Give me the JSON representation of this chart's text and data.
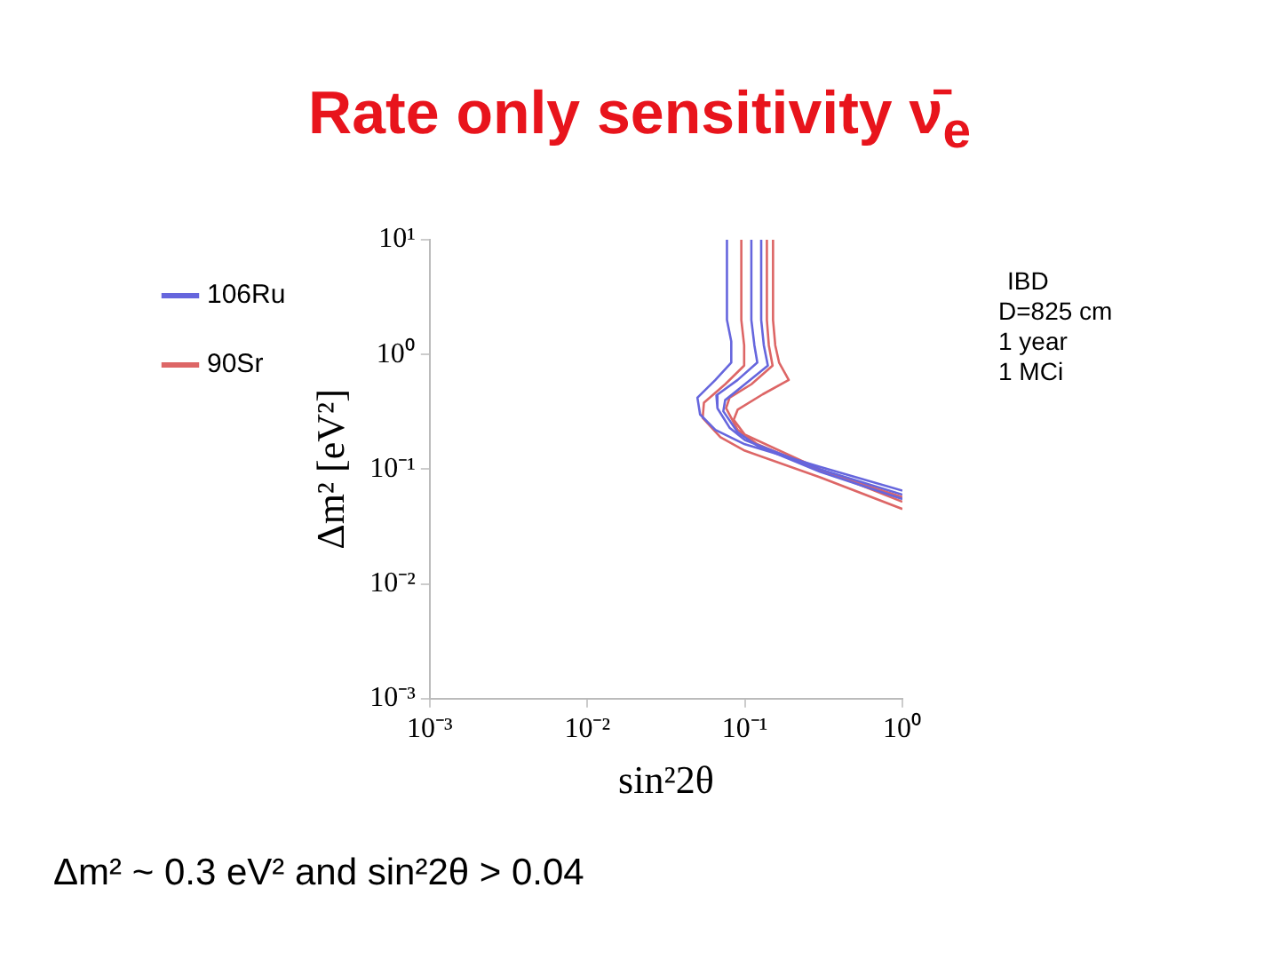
{
  "chart_data": {
    "type": "line",
    "title": "Rate only sensitivity ν̄$_{e}$",
    "xlabel": "sin²2θ",
    "ylabel": "Δm² [eV²]",
    "annotations": [
      "IBD",
      "D=825 cm",
      "1 year",
      "1 MCi",
      "Δm² ~ 0.3 eV² and sin²2θ > 0.04"
    ],
    "log": "xy",
    "grid": false,
    "legend": "left",
    "xlim": [
      0.001,
      1
    ],
    "ylim": [
      0.001,
      10
    ],
    "xticks": [
      {
        "value": 0.001,
        "label": "10⁻³"
      },
      {
        "value": 0.01,
        "label": "10⁻²"
      },
      {
        "value": 0.1,
        "label": "10⁻¹"
      },
      {
        "value": 1,
        "label": "10⁰"
      }
    ],
    "yticks": [
      {
        "value": 0.001,
        "label": "10⁻³"
      },
      {
        "value": 0.01,
        "label": "10⁻²"
      },
      {
        "value": 0.1,
        "label": "10⁻¹"
      },
      {
        "value": 1,
        "label": "10⁰"
      },
      {
        "value": 10,
        "label": "10¹"
      }
    ],
    "series": [
      {
        "name": "106Ru",
        "color": "#6666dd",
        "x": [
          0.077,
          0.077,
          0.082,
          0.082,
          0.065,
          0.05,
          0.052,
          0.065,
          0.1,
          0.3,
          1
        ],
        "values": [
          10,
          2,
          1.3,
          0.85,
          0.6,
          0.42,
          0.3,
          0.22,
          0.165,
          0.105,
          0.065
        ]
      },
      {
        "name": "90Sr",
        "color": "#dd6666",
        "x": [
          0.095,
          0.095,
          0.099,
          0.099,
          0.075,
          0.055,
          0.054,
          0.07,
          0.1,
          0.3,
          1
        ],
        "values": [
          10,
          2,
          1.2,
          0.8,
          0.55,
          0.38,
          0.28,
          0.19,
          0.145,
          0.085,
          0.045
        ]
      },
      {
        "color": "#6666dd",
        "x": [
          0.11,
          0.11,
          0.115,
          0.12,
          0.09,
          0.066,
          0.067,
          0.08,
          0.1,
          0.3,
          1
        ],
        "values": [
          10,
          2,
          1.2,
          0.85,
          0.6,
          0.44,
          0.34,
          0.23,
          0.18,
          0.1,
          0.06
        ]
      },
      {
        "color": "#6666dd",
        "x": [
          0.127,
          0.127,
          0.132,
          0.14,
          0.1,
          0.075,
          0.073,
          0.09,
          0.12,
          0.3,
          1
        ],
        "values": [
          10,
          2,
          1.2,
          0.8,
          0.55,
          0.4,
          0.32,
          0.21,
          0.16,
          0.095,
          0.055
        ]
      },
      {
        "color": "#dd6666",
        "x": [
          0.138,
          0.138,
          0.142,
          0.15,
          0.11,
          0.08,
          0.076,
          0.09,
          0.12,
          0.3,
          1
        ],
        "values": [
          10,
          2,
          1.2,
          0.8,
          0.55,
          0.42,
          0.34,
          0.22,
          0.165,
          0.098,
          0.057
        ]
      },
      {
        "color": "#dd6666",
        "x": [
          0.151,
          0.151,
          0.156,
          0.165,
          0.19,
          0.13,
          0.09,
          0.085,
          0.1,
          0.3,
          1
        ],
        "values": [
          10,
          2,
          1.2,
          0.85,
          0.6,
          0.45,
          0.33,
          0.27,
          0.2,
          0.1,
          0.052
        ]
      }
    ]
  }
}
